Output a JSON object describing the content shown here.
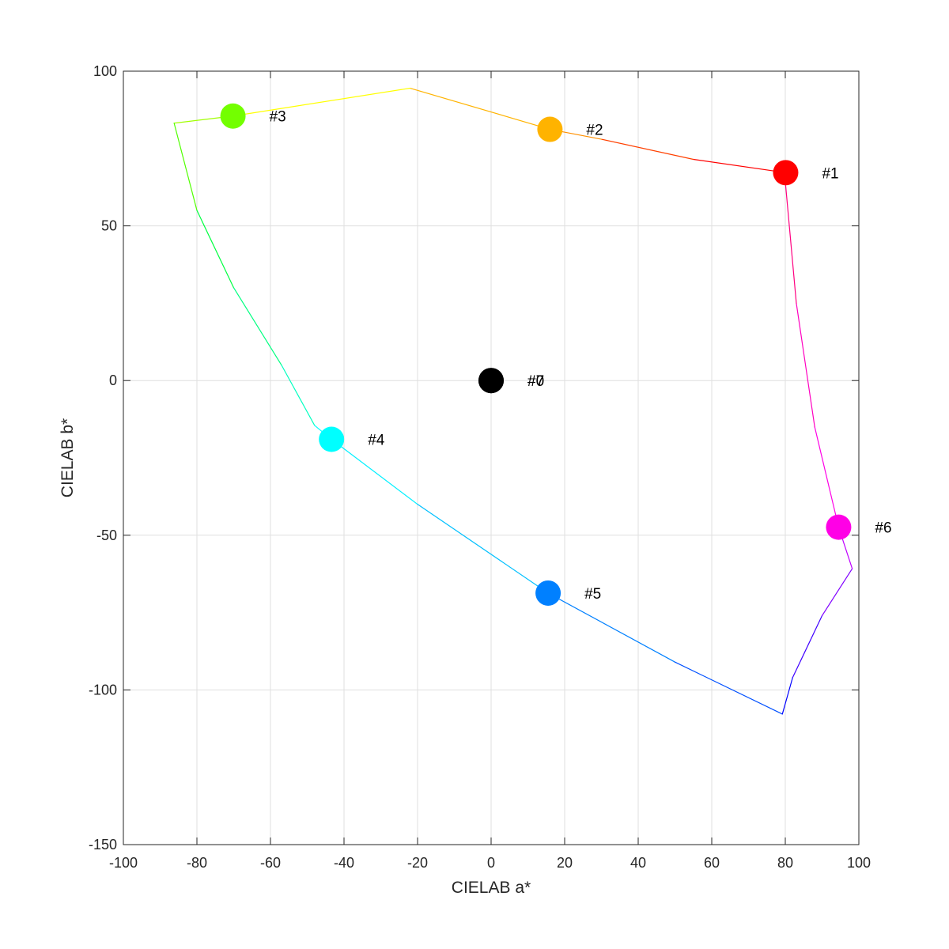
{
  "chart_data": {
    "type": "scatter",
    "xlabel": "CIELAB a*",
    "ylabel": "CIELAB b*",
    "xlim": [
      -100,
      100
    ],
    "ylim": [
      -150,
      100
    ],
    "x_ticks": [
      -100,
      -80,
      -60,
      -40,
      -20,
      0,
      20,
      40,
      60,
      80,
      100
    ],
    "y_ticks": [
      -150,
      -100,
      -50,
      0,
      50,
      100
    ],
    "x_tick_labels": [
      "-100",
      "-80",
      "-60",
      "-40",
      "-20",
      "0",
      "20",
      "40",
      "60",
      "80",
      "100"
    ],
    "y_tick_labels": [
      "-150",
      "-100",
      "-50",
      "0",
      "50",
      "100"
    ],
    "grid": true,
    "points": [
      {
        "label": "#1",
        "a": 80.1,
        "b": 67.2,
        "color": "#ff0000"
      },
      {
        "label": "#2",
        "a": 16.0,
        "b": 81.2,
        "color": "#ffb300"
      },
      {
        "label": "#3",
        "a": -70.2,
        "b": 85.5,
        "color": "#73ff00"
      },
      {
        "label": "#4",
        "a": -43.4,
        "b": -19.0,
        "color": "#00ffff"
      },
      {
        "label": "#5",
        "a": 15.5,
        "b": -68.7,
        "color": "#0080ff"
      },
      {
        "label": "#6",
        "a": 94.5,
        "b": -47.4,
        "color": "#ff00e6"
      },
      {
        "label": "#7",
        "a": 0.0,
        "b": 0.0,
        "color": "#000000"
      },
      {
        "label": "#0",
        "a": 0.0,
        "b": 0.0,
        "color": "#000000"
      }
    ],
    "gamut_boundary": [
      {
        "a": 80.1,
        "b": 67.2,
        "color": "#ff0000"
      },
      {
        "a": 55,
        "b": 71.5,
        "color": "#ff4000"
      },
      {
        "a": 30,
        "b": 78,
        "color": "#ff9000"
      },
      {
        "a": 16.0,
        "b": 81.2,
        "color": "#ffb300"
      },
      {
        "a": -22,
        "b": 94.5,
        "color": "#ffff00"
      },
      {
        "a": -70.2,
        "b": 85.5,
        "color": "#a0ff00"
      },
      {
        "a": -86.2,
        "b": 83.2,
        "color": "#50ff00"
      },
      {
        "a": -80,
        "b": 55,
        "color": "#00ff40"
      },
      {
        "a": -70,
        "b": 30,
        "color": "#00ff80"
      },
      {
        "a": -57,
        "b": 5,
        "color": "#00ffc0"
      },
      {
        "a": -48,
        "b": -14.5,
        "color": "#00ffff"
      },
      {
        "a": -43.4,
        "b": -19.0,
        "color": "#00f0ff"
      },
      {
        "a": -20,
        "b": -40,
        "color": "#00c0ff"
      },
      {
        "a": 15.5,
        "b": -68.7,
        "color": "#0080ff"
      },
      {
        "a": 50,
        "b": -91,
        "color": "#0050ff"
      },
      {
        "a": 79.2,
        "b": -107.8,
        "color": "#0000ff"
      },
      {
        "a": 82,
        "b": -96,
        "color": "#4000ff"
      },
      {
        "a": 90,
        "b": -76,
        "color": "#8000ff"
      },
      {
        "a": 98.2,
        "b": -60.8,
        "color": "#c000ff"
      },
      {
        "a": 94.5,
        "b": -47.4,
        "color": "#ff00e6"
      },
      {
        "a": 88,
        "b": -15,
        "color": "#ff00c0"
      },
      {
        "a": 83,
        "b": 25,
        "color": "#ff0080"
      },
      {
        "a": 80.1,
        "b": 63,
        "color": "#ff0020"
      }
    ]
  }
}
